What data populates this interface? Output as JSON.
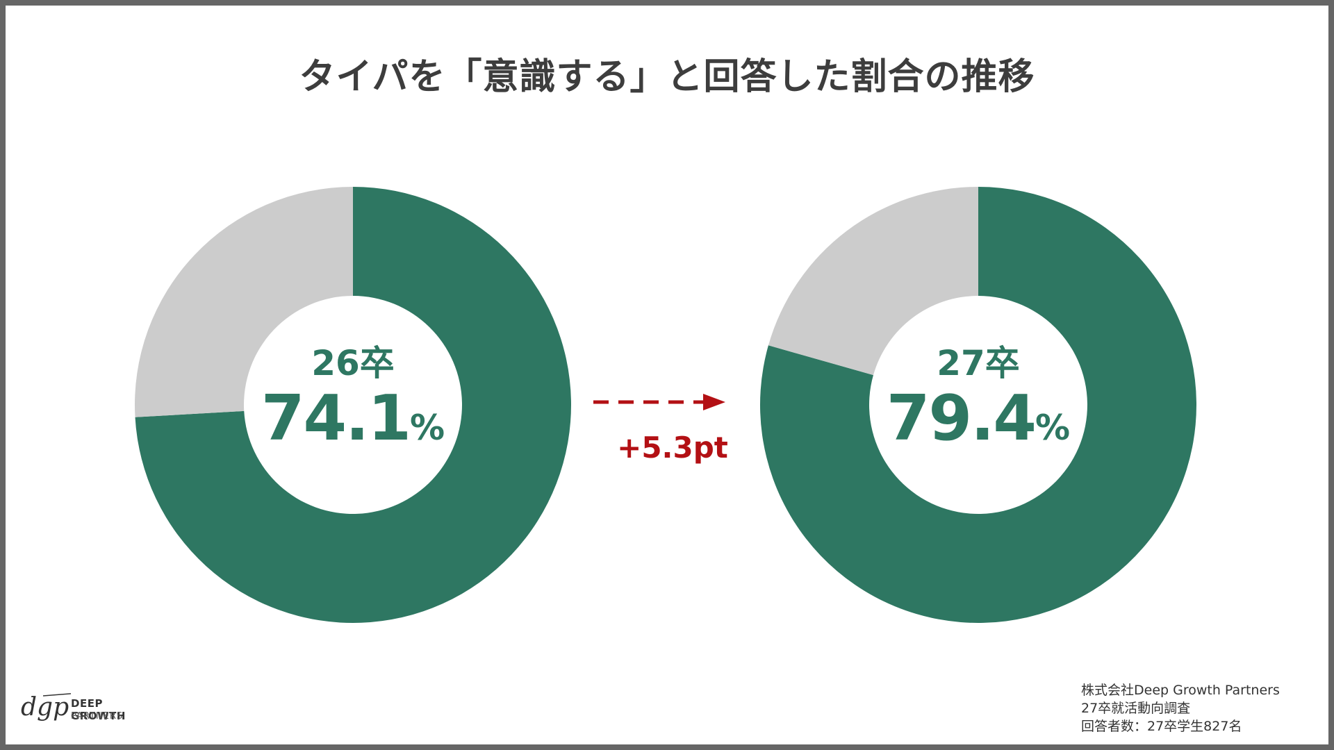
{
  "title": "タイパを「意識する」と回答した割合の推移",
  "colors": {
    "primary": "#2e7762",
    "remainder": "#cccccc",
    "accent": "#b31014",
    "border": "#666666"
  },
  "chart_data": [
    {
      "type": "pie",
      "center_label": "26卒",
      "value_label": "74.1",
      "unit": "%",
      "slices": [
        {
          "value": 74.1,
          "color": "#2e7762"
        },
        {
          "value": 25.9,
          "color": "#cccccc"
        }
      ]
    },
    {
      "type": "pie",
      "center_label": "27卒",
      "value_label": "79.4",
      "unit": "%",
      "slices": [
        {
          "value": 79.4,
          "color": "#2e7762"
        },
        {
          "value": 20.6,
          "color": "#cccccc"
        }
      ]
    }
  ],
  "change_label": "+5.3pt",
  "logo": {
    "mark": "dgp",
    "name": "DEEP GROWTH",
    "sub": "PARTNERS"
  },
  "source_lines": [
    "株式会社Deep Growth Partners",
    "27卒就活動向調査",
    "回答者数：27卒学生827名"
  ]
}
